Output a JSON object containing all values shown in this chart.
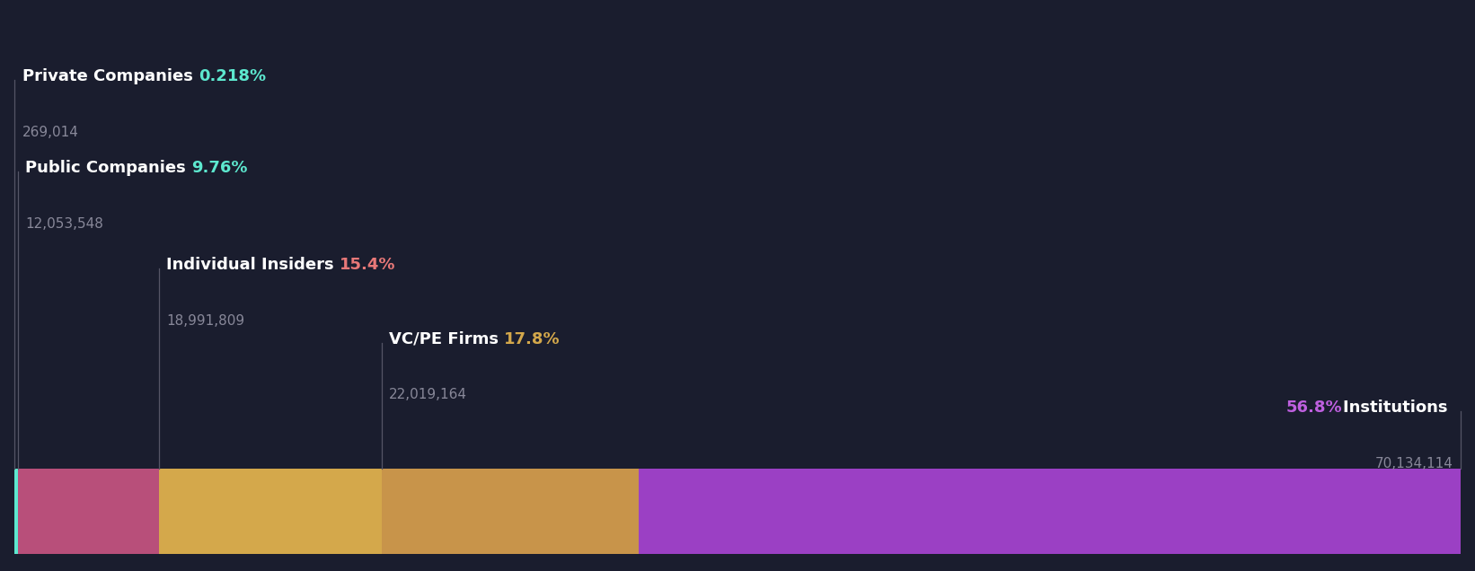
{
  "categories": [
    "Private Companies",
    "Public Companies",
    "Individual Insiders",
    "VC/PE Firms",
    "Institutions"
  ],
  "percentages": [
    0.218,
    9.76,
    15.4,
    17.8,
    56.8
  ],
  "values": [
    "269,014",
    "12,053,548",
    "18,991,809",
    "22,019,164",
    "70,134,114"
  ],
  "seg_colors": [
    "#5de8cf",
    "#b84f7a",
    "#d4a84b",
    "#c8944a",
    "#9b40c4"
  ],
  "pct_colors": [
    "#5de8cf",
    "#5de8cf",
    "#e87878",
    "#d4a84b",
    "#bf60e0"
  ],
  "background_color": "#1a1d2e",
  "text_color": "#ffffff",
  "value_color": "#888899",
  "line_color": "#555566",
  "figure_width": 16.42,
  "figure_height": 6.36,
  "name_fontsize": 13,
  "val_fontsize": 11,
  "pct_fontsize": 13
}
